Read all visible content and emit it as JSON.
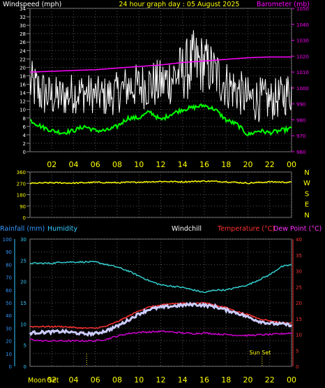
{
  "chart_data": [
    {
      "type": "line",
      "title": "24 hour graph day : 05 August 2025",
      "x_tick_labels": [
        "02",
        "04",
        "06",
        "08",
        "10",
        "12",
        "14",
        "16",
        "18",
        "20",
        "22",
        "00"
      ],
      "x_hours": [
        2,
        4,
        6,
        8,
        10,
        12,
        14,
        16,
        18,
        20,
        22,
        24
      ],
      "left_axis": {
        "label": "Windspeed (mph)",
        "ylim": [
          0,
          34
        ],
        "ticks": [
          0,
          2,
          4,
          6,
          8,
          10,
          12,
          14,
          16,
          18,
          20,
          22,
          24,
          26,
          28,
          30,
          32,
          34
        ]
      },
      "right_axis": {
        "label": "Barometer (mb)",
        "ylim": [
          960,
          1050
        ],
        "ticks": [
          960,
          970,
          980,
          990,
          1000,
          1010,
          1020,
          1030,
          1040,
          1050
        ]
      },
      "grid": true,
      "colors": {
        "gust": "#ffffff",
        "average": "#00ff00",
        "barometer": "#ff00ff",
        "title": "#ffff00",
        "left_label": "#ffffff",
        "right_label": "#ff00ff"
      },
      "series": [
        {
          "axis": "right",
          "color": "#ff00ff",
          "x": [
            0,
            2,
            4,
            6,
            8,
            10,
            12,
            14,
            16,
            18,
            20,
            22,
            24
          ],
          "values": [
            1010,
            1010.5,
            1011,
            1011.5,
            1012.5,
            1013.5,
            1014.5,
            1016,
            1017,
            1018,
            1019,
            1019.5,
            1019.5
          ]
        },
        {
          "axis": "left",
          "color": "#00ff00",
          "x": [
            0,
            1,
            2,
            3,
            4,
            5,
            6,
            7,
            8,
            9,
            10,
            11,
            12,
            13,
            14,
            15,
            16,
            17,
            18,
            19,
            20,
            21,
            22,
            23,
            24
          ],
          "values": [
            7.5,
            6,
            5,
            4.5,
            5,
            6,
            5,
            5,
            6,
            8,
            8,
            9.5,
            7.5,
            9,
            10,
            10.5,
            11,
            10,
            7.5,
            6.5,
            4,
            5,
            4.5,
            5,
            5.5
          ]
        },
        {
          "axis": "left",
          "color": "#ffffff",
          "x": [
            0,
            1,
            2,
            3,
            4,
            5,
            6,
            7,
            8,
            9,
            10,
            11,
            12,
            13,
            14,
            15,
            16,
            17,
            18,
            19,
            20,
            21,
            22,
            23,
            24
          ],
          "values_low": [
            10,
            8,
            8,
            8,
            9,
            9,
            9,
            8,
            9,
            10,
            10,
            10,
            10,
            11,
            12,
            12,
            14,
            12,
            10,
            9,
            7,
            7,
            7,
            8,
            9
          ],
          "values_high": [
            22,
            20,
            18,
            18,
            19,
            19,
            18,
            18,
            19,
            21,
            21,
            22,
            22,
            24,
            26,
            29,
            28,
            25,
            22,
            20,
            18,
            18,
            17,
            18,
            20
          ]
        }
      ]
    },
    {
      "type": "line",
      "left_axis": {
        "ticks": [
          0,
          90,
          180,
          270,
          360
        ],
        "ylim": [
          0,
          360
        ]
      },
      "right_axis": {
        "ticks": [
          "N",
          "E",
          "S",
          "W",
          "N"
        ]
      },
      "x_hours": [
        2,
        4,
        6,
        8,
        10,
        12,
        14,
        16,
        18,
        20,
        22,
        24
      ],
      "grid": true,
      "series": [
        {
          "color": "#ffff00",
          "x": [
            0,
            2,
            4,
            6,
            8,
            10,
            12,
            14,
            16,
            18,
            20,
            22,
            24
          ],
          "values": [
            270,
            275,
            272,
            278,
            275,
            280,
            285,
            282,
            288,
            283,
            272,
            282,
            278
          ]
        }
      ]
    },
    {
      "type": "line",
      "legend": [
        "Rainfall (mm)",
        "Humidity",
        "Windchill",
        "Temperature (°C)",
        "Dew Point (°C)"
      ],
      "legend_colors": [
        "#3399ff",
        "#33ccff",
        "#ffffff",
        "#ff3333",
        "#ff33ff"
      ],
      "axes": {
        "rain": {
          "ticks": [
            0,
            10,
            20,
            30,
            40,
            50,
            60,
            70,
            80,
            90,
            100
          ],
          "ylim": [
            0,
            100
          ]
        },
        "humidity": {
          "ticks": [
            0,
            5,
            10,
            15,
            20,
            25,
            30
          ],
          "ylim": [
            0,
            30
          ]
        },
        "temperature": {
          "ticks": [
            0,
            5,
            10,
            15,
            20,
            25,
            30,
            35,
            40
          ],
          "ylim": [
            0,
            40
          ]
        }
      },
      "x_tick_labels": [
        "02",
        "04",
        "06",
        "08",
        "10",
        "12",
        "14",
        "16",
        "18",
        "20",
        "22",
        "00"
      ],
      "x_hours": [
        2,
        4,
        6,
        8,
        10,
        12,
        14,
        16,
        18,
        20,
        22,
        24
      ],
      "annotations": {
        "moon_set": {
          "label": "Moon Set",
          "hour": 5.2
        },
        "sun_set": {
          "label": "Sun Set",
          "hour": 21.3
        }
      },
      "grid": true,
      "series": [
        {
          "name": "Humidity",
          "color": "#33cccc",
          "x": [
            0,
            1,
            2,
            3,
            4,
            5,
            6,
            7,
            8,
            9,
            10,
            11,
            12,
            13,
            14,
            15,
            16,
            17,
            18,
            19,
            20,
            21,
            22,
            23,
            24
          ],
          "values": [
            81,
            81,
            81,
            82,
            82,
            82,
            82,
            80,
            78,
            75,
            71,
            67,
            64,
            63,
            62,
            60,
            58,
            60,
            60,
            62,
            64,
            68,
            72,
            78,
            80
          ]
        },
        {
          "name": "Temperature (°C)",
          "color": "#ff3333",
          "x": [
            0,
            1,
            2,
            3,
            4,
            5,
            6,
            7,
            8,
            9,
            10,
            11,
            12,
            13,
            14,
            15,
            16,
            17,
            18,
            19,
            20,
            21,
            22,
            23,
            24
          ],
          "values": [
            12.5,
            12.5,
            12.5,
            12.5,
            12.2,
            12,
            12,
            12.6,
            14,
            15.7,
            17.5,
            18.7,
            19.2,
            19.7,
            19.8,
            19.8,
            20,
            19.2,
            18.5,
            17.2,
            16.3,
            15,
            14.3,
            13.8,
            13.5
          ]
        },
        {
          "name": "Windchill",
          "color": "#ccccff",
          "x": [
            0,
            1,
            2,
            3,
            4,
            5,
            6,
            7,
            8,
            9,
            10,
            11,
            12,
            13,
            14,
            15,
            16,
            17,
            18,
            19,
            20,
            21,
            22,
            23,
            24
          ],
          "values": [
            10.5,
            10.7,
            10.8,
            11,
            10.6,
            10.2,
            10.3,
            11.2,
            12.6,
            14.5,
            16.5,
            18,
            18.5,
            18.9,
            19.2,
            19.5,
            19.2,
            18.8,
            17.7,
            16.8,
            15.5,
            14.2,
            13.5,
            13.3,
            13
          ]
        },
        {
          "name": "Dew Point (°C)",
          "color": "#cc00cc",
          "x": [
            0,
            1,
            2,
            3,
            4,
            5,
            6,
            7,
            8,
            9,
            10,
            11,
            12,
            13,
            14,
            15,
            16,
            17,
            18,
            19,
            20,
            21,
            22,
            23,
            24
          ],
          "values": [
            8.5,
            8,
            8,
            8,
            8,
            8,
            8,
            8.5,
            9.5,
            10.3,
            10.7,
            10.8,
            11,
            10.8,
            10.5,
            10.3,
            10.5,
            10.2,
            10,
            9.8,
            9.7,
            9.9,
            10,
            10.2,
            10.5
          ]
        }
      ]
    }
  ]
}
